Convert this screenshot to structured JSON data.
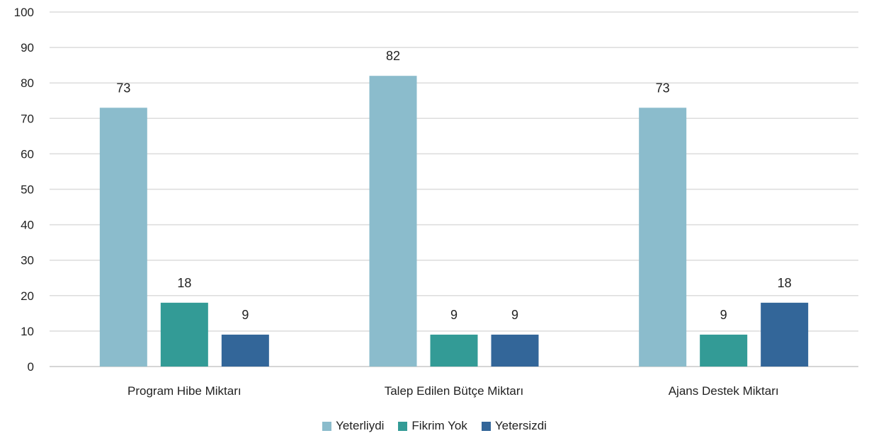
{
  "chart_data": {
    "type": "bar",
    "categories": [
      "Program Hibe Miktarı",
      "Talep Edilen Bütçe Miktarı",
      "Ajans Destek Miktarı"
    ],
    "series": [
      {
        "name": "Yeterliydi",
        "values": [
          73,
          82,
          73
        ],
        "color": "#8bbccc"
      },
      {
        "name": "Fikrim Yok",
        "values": [
          18,
          9,
          9
        ],
        "color": "#339b96"
      },
      {
        "name": "Yetersizdi",
        "values": [
          9,
          9,
          18
        ],
        "color": "#336699"
      }
    ],
    "ylim": [
      0,
      100
    ],
    "yticks": [
      0,
      10,
      20,
      30,
      40,
      50,
      60,
      70,
      80,
      90,
      100
    ],
    "grid": true,
    "legend_position": "bottom"
  }
}
